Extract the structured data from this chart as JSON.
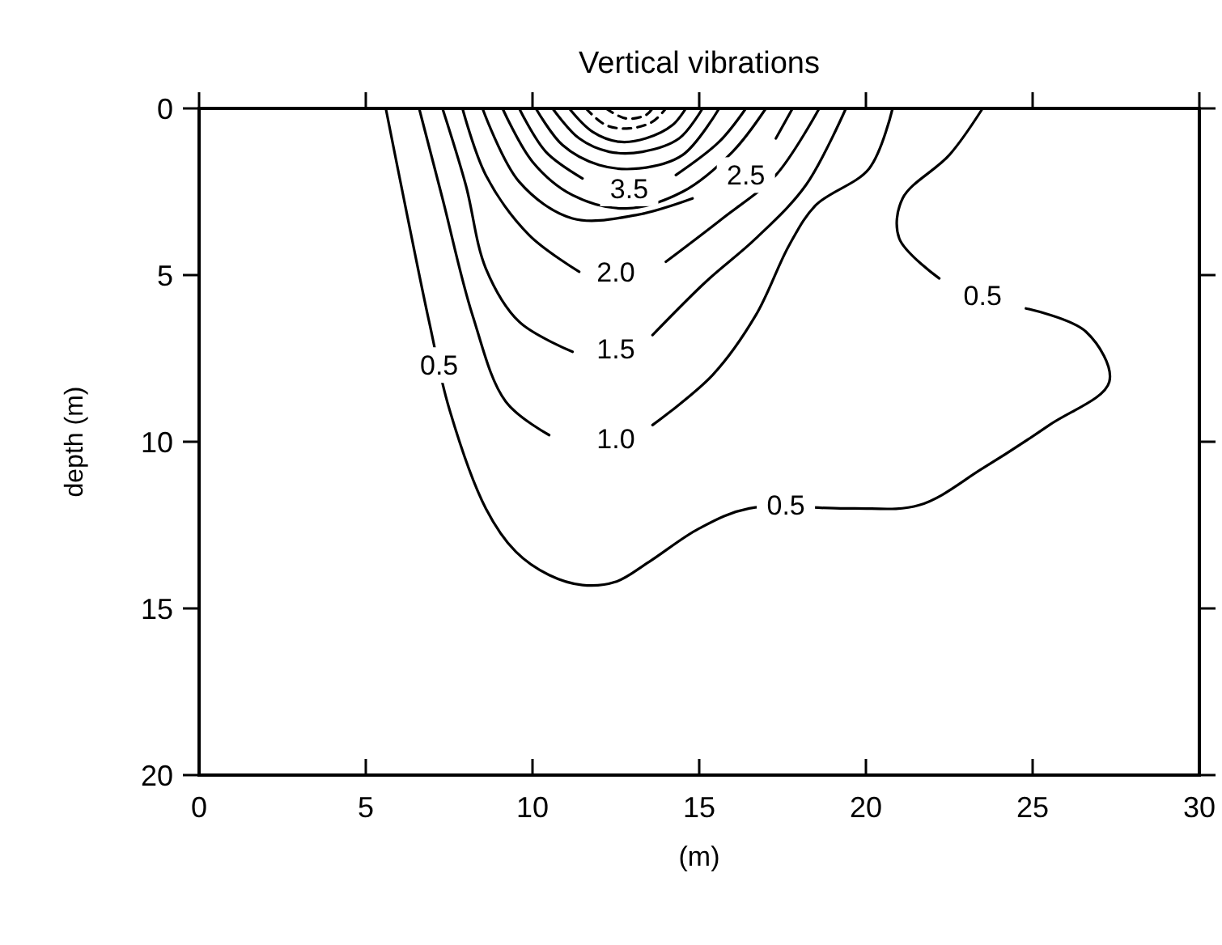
{
  "chart_data": {
    "type": "line",
    "title": "Vertical vibrations",
    "xlabel": "(m)",
    "ylabel": "depth (m)",
    "xlim": [
      0,
      30
    ],
    "ylim": [
      20,
      0
    ],
    "xticks": [
      0,
      5,
      10,
      15,
      20,
      25,
      30
    ],
    "yticks": [
      0,
      5,
      10,
      15,
      20
    ],
    "line_style": "solid",
    "series": [
      {
        "color": "#000000",
        "x": [
          5.6,
          6.2,
          6.9,
          7.5,
          8.6,
          9.5,
          10.5,
          11.5,
          12.5,
          13.5,
          15,
          16.5,
          19.5,
          21.6,
          23.5,
          25.5,
          27.3,
          26.6,
          24.8,
          23.5,
          22.2,
          21,
          21.1,
          22.5,
          23.5
        ],
        "values": [
          0,
          3,
          6.4,
          9,
          12,
          13.3,
          14,
          14.3,
          14.2,
          13.6,
          12.6,
          12,
          12,
          11.9,
          10.8,
          9.5,
          8.2,
          6.7,
          6,
          null,
          5.1,
          3.9,
          2.7,
          1.4,
          0
        ]
      },
      {
        "color": "#000000",
        "x": [
          6.6,
          7.3,
          8.2,
          9.2,
          10.5,
          12.5,
          13.6,
          15.4,
          16.7,
          17.7,
          18.5,
          20.1,
          20.8
        ],
        "values": [
          0,
          2.7,
          6.2,
          8.8,
          9.8,
          null,
          9.5,
          8,
          6.2,
          4.1,
          2.9,
          1.8,
          0
        ]
      },
      {
        "color": "#000000",
        "x": [
          7.3,
          8,
          8.6,
          9.6,
          11.2,
          12.5,
          13.6,
          15.2,
          16.7,
          18.2,
          19.4
        ],
        "values": [
          0,
          2.3,
          4.8,
          6.4,
          7.3,
          null,
          6.8,
          5.2,
          3.9,
          2.3,
          0
        ]
      },
      {
        "color": "#000000",
        "x": [
          7.9,
          8.6,
          9.9,
          11.4,
          12.5,
          14,
          15.7,
          17.3,
          18.6
        ],
        "values": [
          0,
          2,
          3.8,
          4.9,
          null,
          4.6,
          3.3,
          2,
          0
        ]
      },
      {
        "color": "#000000",
        "x": [
          8.5,
          9.6,
          11.2,
          13.1,
          14.8,
          16.4,
          17.3,
          17.8
        ],
        "values": [
          0,
          2.2,
          3.3,
          3.2,
          2.7,
          null,
          0.9,
          0
        ]
      },
      {
        "color": "#000000",
        "x": [
          9.1,
          10,
          11.2,
          12.8,
          14.5,
          16,
          17
        ],
        "values": [
          0,
          1.6,
          2.6,
          3,
          2.5,
          1.3,
          0
        ]
      },
      {
        "color": "#000000",
        "x": [
          9.6,
          10.4,
          11.5,
          12.9,
          14.3,
          15.6,
          16.4
        ],
        "values": [
          0,
          1.3,
          2.1,
          null,
          2,
          1,
          0
        ]
      },
      {
        "color": "#000000",
        "x": [
          10.1,
          10.9,
          12,
          13.2,
          14.5,
          15.6
        ],
        "values": [
          0,
          1.1,
          1.7,
          1.8,
          1.4,
          0
        ]
      },
      {
        "color": "#000000",
        "x": [
          10.6,
          11.4,
          12.3,
          13.3,
          14.4,
          15.1
        ],
        "values": [
          0,
          0.9,
          1.3,
          1.3,
          0.9,
          0
        ]
      },
      {
        "color": "#000000",
        "x": [
          11.1,
          11.8,
          12.6,
          13.4,
          14.2,
          14.6
        ],
        "values": [
          0,
          0.7,
          1,
          0.9,
          0.5,
          0
        ]
      },
      {
        "color": "#000000",
        "line_style": "dashed",
        "x": [
          11.6,
          12.2,
          12.9,
          13.6,
          14
        ],
        "values": [
          0,
          0.5,
          0.6,
          0.4,
          0
        ]
      },
      {
        "color": "#000000",
        "line_style": "dashed",
        "x": [
          12.2,
          12.8,
          13.4,
          13.6
        ],
        "values": [
          0,
          0.3,
          0.2,
          0
        ]
      }
    ],
    "annotations": [
      {
        "text": "0.5",
        "x": 7.2,
        "y": 7.7
      },
      {
        "text": "0.5",
        "x": 23.5,
        "y": 5.6
      },
      {
        "text": "0.5",
        "x": 17.6,
        "y": 11.9
      },
      {
        "text": "1.0",
        "x": 12.5,
        "y": 9.9
      },
      {
        "text": "1.5",
        "x": 12.5,
        "y": 7.2
      },
      {
        "text": "2.0",
        "x": 12.5,
        "y": 4.9
      },
      {
        "text": "2.5",
        "x": 16.4,
        "y": 2.0
      },
      {
        "text": "3.5",
        "x": 12.9,
        "y": 2.4
      }
    ]
  }
}
